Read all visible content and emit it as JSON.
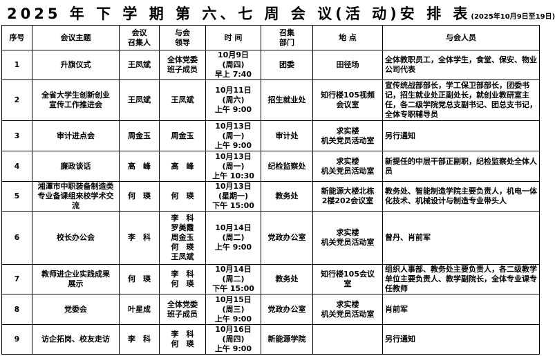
{
  "title": {
    "main": "2025 年 下 学 期 第 六、七 周 会 议(活 动)安 排 表",
    "sub": "(2025年10月9日至19日)"
  },
  "headers": [
    "序号",
    "会议主题",
    "会议\n召集人",
    "与会\n领导",
    "时 间",
    "召集\n部门",
    "地 点",
    "与会人员"
  ],
  "rows": [
    {
      "no": "1",
      "topic": "升旗仪式",
      "convener": "王凤斌",
      "leaders": "全体党委\n班子成员",
      "time": "10月9日\n(周四)\n早上 7:40",
      "dept": "团委",
      "place": "田径场",
      "attendees": "全体教职员工，全体学生，食堂、保安、物业公司代表",
      "h": 43
    },
    {
      "no": "2",
      "topic": "全省大学生创新创业\n宣传工作推进会",
      "convener": "王凤斌",
      "leaders": "王凤斌",
      "time": "10月11日\n(周六)\n上午 9:00",
      "dept": "招生就业处",
      "place": "知行楼105视频\n会议室",
      "attendees": "宣传统战部部长，学工保卫部部长，团委书记，招生就业处正副处长，就创业教研室主任，各二级学院党总支副书记、团总支书记，全体专职辅导员",
      "h": 59
    },
    {
      "no": "3",
      "topic": "审计进点会",
      "convener": "周金玉",
      "leaders": "周金玉",
      "time": "10月13日\n(周一)\n上午 9:00",
      "dept": "审计处",
      "place": "求实楼\n机关党员活动室",
      "attendees": "另行通知",
      "h": 44
    },
    {
      "no": "4",
      "topic": "廉政谈话",
      "convener": "高　峰",
      "leaders": "高　峰",
      "time": "10月13日\n(周一)\n上午 10:30",
      "dept": "纪检监察处",
      "place": "求实楼\n机关党员活动室",
      "attendees": "新提任的中层干部正副职，纪检监察处全体人员",
      "h": 44
    },
    {
      "no": "5",
      "topic": "湘潭市中职装备制造类专业备课组来校学术交流",
      "convener": "何　瑛",
      "leaders": "何　瑛",
      "time": "10月13日\n(星期一)\n下午 15:00",
      "dept": "教务处",
      "place": "新能源大楼北栋\n2楼202会议室",
      "attendees": "教务处、智能制造学院主要负责人，机电一体化技术、机械设计与制造专业带头人",
      "h": 41
    },
    {
      "no": "6",
      "topic": "校长办公会",
      "convener": "李　科",
      "leaders": "李　科\n罗美霞\n周金玉\n何　瑛\n王凤斌",
      "time": "10月14日\n(周二)\n上午 9:00",
      "dept": "党政办公室",
      "place": "求实楼\n机关党员活动室",
      "attendees": "曾丹、肖前军",
      "h": 77
    },
    {
      "no": "7",
      "topic": "教师进企业实践成果\n展示",
      "convener": "何　瑛",
      "leaders": "李　科\n何　瑛",
      "time": "10月14日\n(周二)\n下午 15:00",
      "dept": "教务处",
      "place": "知行楼105会议\n室",
      "attendees": "组织人事部、教务处主要负责人，各二级教学单位主要负责人、教学副院长，全体专业课专任教师",
      "h": 43
    },
    {
      "no": "8",
      "topic": "党委会",
      "convener": "叶星成",
      "leaders": "全体党委\n班子成员",
      "time": "10月15日\n(周三)\n上午 9:00",
      "dept": "党政办公室",
      "place": "求实楼\n机关党员活动室",
      "attendees": "肖前军",
      "h": 44
    },
    {
      "no": "9",
      "topic": "访企拓岗、校友走访",
      "convener": "李　科",
      "leaders": "李　科\n何　瑛",
      "time": "10月16日\n(周四)\n上午 9:00",
      "dept": "新能源学院",
      "place": "",
      "attendees": "另行通知",
      "h": 43
    }
  ]
}
